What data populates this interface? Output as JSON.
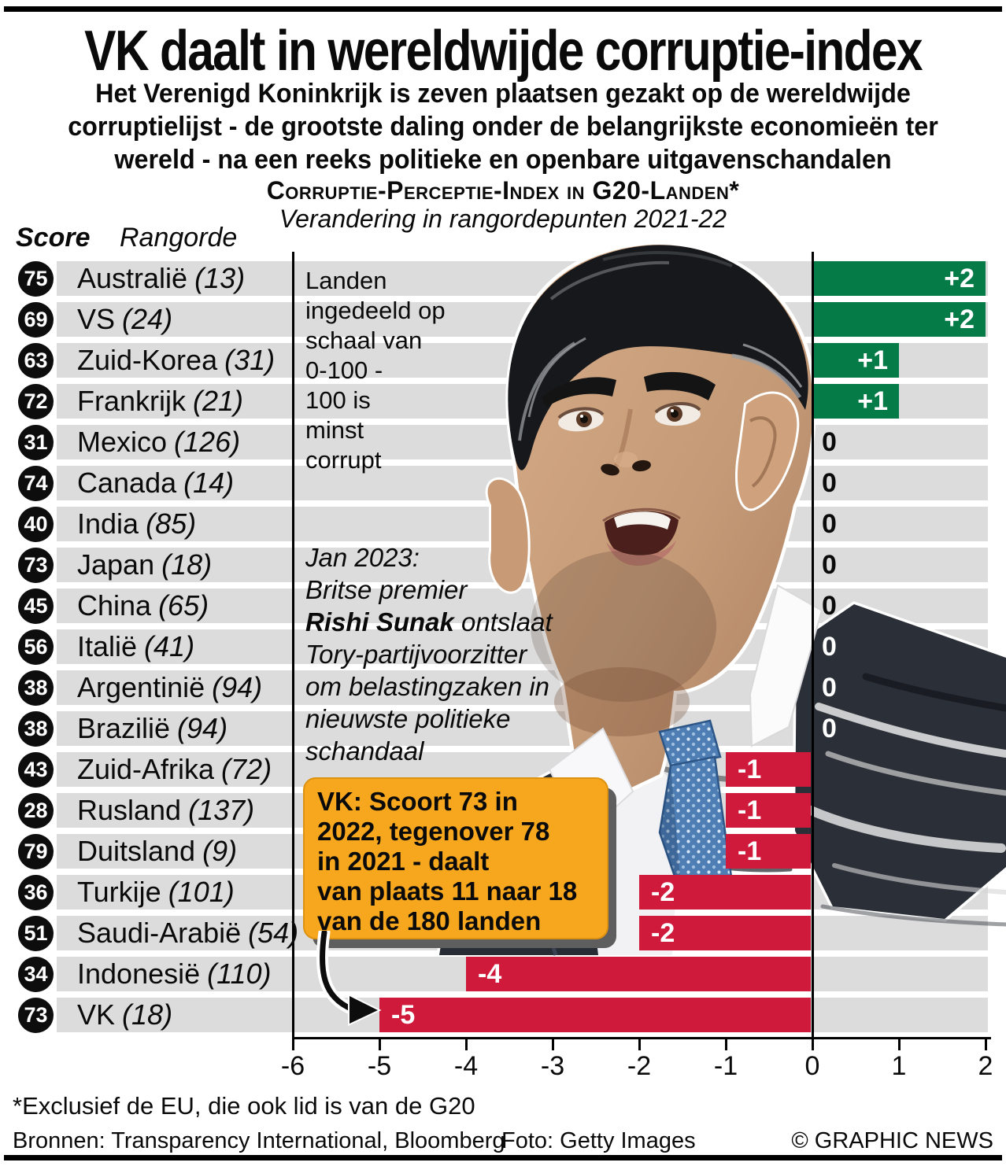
{
  "header": {
    "title": "VK daalt in wereldwijde corruptie-index",
    "subtitle_lines": [
      "Het Verenigd Koninkrijk is zeven plaatsen gezakt op de wereldwijde",
      "corruptielijst - de grootste daling onder de belangrijkste economieën ter",
      "wereld - na een reeks politieke en openbare uitgavenschandalen"
    ]
  },
  "chart": {
    "title": "Corruptie-Perceptie-Index in G20-Landen*",
    "subtitle": "Verandering in rangordepunten 2021-22",
    "col_score": "Score",
    "col_rank": "Rangorde"
  },
  "chart_data": {
    "type": "bar",
    "orientation": "horizontal",
    "title": "Corruptie-Perceptie-Index in G20-landen",
    "xlabel": "Verandering in rangordepunten 2021-22",
    "xlim": [
      -6,
      2
    ],
    "x_ticks": [
      -6,
      -5,
      -4,
      -3,
      -2,
      -1,
      0,
      1,
      2
    ],
    "grid": false,
    "colors": {
      "positive": "#057c48",
      "negative": "#d01a3c",
      "band": "#dcdcdc",
      "zero_dark_text": "#ffffff",
      "zero_light_text": "#0a0a0a"
    },
    "rows": [
      {
        "score": "75",
        "country": "Australië",
        "rank": "(13)",
        "change": "+2",
        "value": 2
      },
      {
        "score": "69",
        "country": "VS",
        "rank": "(24)",
        "change": "+2",
        "value": 2
      },
      {
        "score": "63",
        "country": "Zuid-Korea",
        "rank": "(31)",
        "change": "+1",
        "value": 1
      },
      {
        "score": "72",
        "country": "Frankrijk",
        "rank": "(21)",
        "change": "+1",
        "value": 1
      },
      {
        "score": "31",
        "country": "Mexico",
        "rank": "(126)",
        "change": "0",
        "value": 0
      },
      {
        "score": "74",
        "country": "Canada",
        "rank": "(14)",
        "change": "0",
        "value": 0
      },
      {
        "score": "40",
        "country": "India",
        "rank": "(85)",
        "change": "0",
        "value": 0
      },
      {
        "score": "73",
        "country": "Japan",
        "rank": "(18)",
        "change": "0",
        "value": 0
      },
      {
        "score": "45",
        "country": "China",
        "rank": "(65)",
        "change": "0",
        "value": 0
      },
      {
        "score": "56",
        "country": "Italië",
        "rank": "(41)",
        "change": "0",
        "value": 0,
        "zero_on_dark": true
      },
      {
        "score": "38",
        "country": "Argentinië",
        "rank": "(94)",
        "change": "0",
        "value": 0,
        "zero_on_dark": true
      },
      {
        "score": "38",
        "country": "Brazilië",
        "rank": "(94)",
        "change": "0",
        "value": 0,
        "zero_on_dark": true
      },
      {
        "score": "43",
        "country": "Zuid-Afrika",
        "rank": "(72)",
        "change": "-1",
        "value": -1
      },
      {
        "score": "28",
        "country": "Rusland",
        "rank": "(137)",
        "change": "-1",
        "value": -1
      },
      {
        "score": "79",
        "country": "Duitsland",
        "rank": "(9)",
        "change": "-1",
        "value": -1
      },
      {
        "score": "36",
        "country": "Turkije",
        "rank": "(101)",
        "change": "-2",
        "value": -2
      },
      {
        "score": "51",
        "country": "Saudi-Arabië",
        "rank": "(54)",
        "change": "-2",
        "value": -2
      },
      {
        "score": "34",
        "country": "Indonesië",
        "rank": "(110)",
        "change": "-4",
        "value": -4
      },
      {
        "score": "73",
        "country": "VK",
        "rank": "(18)",
        "change": "-5",
        "value": -5
      }
    ]
  },
  "annotations": {
    "scale_note_lines": [
      "Landen",
      "ingedeeld op",
      "schaal van",
      "0-100 -",
      "100 is",
      "minst",
      "corrupt"
    ],
    "jan_note": {
      "line1": "Jan 2023:",
      "line2": "Britse premier",
      "line3_bold": "Rishi Sunak",
      "line3_rest": " ontslaat",
      "line4": "Tory-partijvoorzitter",
      "line5": "om belastingzaken in",
      "line6": "nieuwste politieke",
      "line7": "schandaal"
    },
    "callout_lines": [
      "VK: Scoort 73 in",
      "2022, tegenover 78",
      "in 2021 - daalt",
      "van plaats 11 naar 18",
      "van de 180 landen"
    ]
  },
  "footer": {
    "footnote": "*Exclusief de EU, die ook lid is van de G20",
    "sources": "Bronnen: Transparency International, Bloomberg",
    "photo_credit": "Foto: Getty Images",
    "copyright": "© GRAPHIC NEWS"
  }
}
